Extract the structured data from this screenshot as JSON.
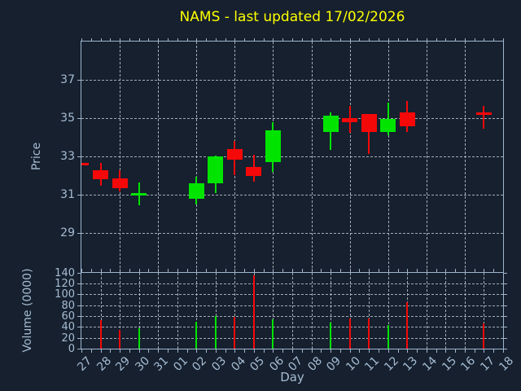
{
  "chart_data": {
    "type": "candlestick",
    "title": "NAMS - last updated 17/02/2026",
    "xlabel": "Day",
    "ylabel_price": "Price",
    "ylabel_volume": "Volume (0000)",
    "x_categories": [
      "27",
      "28",
      "29",
      "30",
      "31",
      "01",
      "02",
      "03",
      "04",
      "05",
      "06",
      "07",
      "08",
      "09",
      "10",
      "11",
      "12",
      "13",
      "14",
      "15",
      "16",
      "17",
      "18"
    ],
    "price_ticks": [
      29,
      31,
      33,
      35,
      37
    ],
    "price_ylim": [
      27,
      39
    ],
    "volume_ticks": [
      0,
      20,
      40,
      60,
      80,
      100,
      120,
      140
    ],
    "volume_ylim": [
      0,
      140
    ],
    "grid": "dashed, horizontal and vertical",
    "legend": "none",
    "candles": [
      {
        "i": 0,
        "day": "27",
        "open": 32.6,
        "high": 32.65,
        "low": 32.55,
        "close": 32.6,
        "dir": "down",
        "volume": null,
        "clipped": true
      },
      {
        "i": 1,
        "day": "28",
        "open": 32.3,
        "high": 32.65,
        "low": 31.5,
        "close": 31.8,
        "dir": "down",
        "volume": 53
      },
      {
        "i": 2,
        "day": "29",
        "open": 31.85,
        "high": 32.3,
        "low": 31.2,
        "close": 31.35,
        "dir": "down",
        "volume": 34
      },
      {
        "i": 3,
        "day": "30",
        "open": 31.1,
        "high": 31.65,
        "low": 30.45,
        "close": 31.1,
        "dir": "up",
        "volume": 37
      },
      {
        "i": 6,
        "day": "02",
        "open": 30.8,
        "high": 31.95,
        "low": 30.5,
        "close": 31.6,
        "dir": "up",
        "volume": 49
      },
      {
        "i": 7,
        "day": "03",
        "open": 31.6,
        "high": 33.05,
        "low": 31.1,
        "close": 33.0,
        "dir": "up",
        "volume": 60
      },
      {
        "i": 8,
        "day": "04",
        "open": 33.4,
        "high": 33.8,
        "low": 32.05,
        "close": 32.85,
        "dir": "down",
        "volume": 58
      },
      {
        "i": 9,
        "day": "05",
        "open": 32.45,
        "high": 33.1,
        "low": 31.7,
        "close": 32.0,
        "dir": "down",
        "volume": 135
      },
      {
        "i": 10,
        "day": "06",
        "open": 32.7,
        "high": 34.8,
        "low": 32.2,
        "close": 34.35,
        "dir": "up",
        "volume": 54
      },
      {
        "i": 13,
        "day": "09",
        "open": 34.3,
        "high": 35.3,
        "low": 33.35,
        "close": 35.15,
        "dir": "up",
        "volume": 48
      },
      {
        "i": 14,
        "day": "10",
        "open": 35.0,
        "high": 35.65,
        "low": 34.25,
        "close": 34.8,
        "dir": "down",
        "volume": 56
      },
      {
        "i": 15,
        "day": "11",
        "open": 35.2,
        "high": 35.2,
        "low": 33.15,
        "close": 34.3,
        "dir": "down",
        "volume": 56
      },
      {
        "i": 16,
        "day": "12",
        "open": 34.3,
        "high": 35.8,
        "low": 34.1,
        "close": 34.95,
        "dir": "up",
        "volume": 44
      },
      {
        "i": 17,
        "day": "13",
        "open": 35.3,
        "high": 35.9,
        "low": 34.3,
        "close": 34.6,
        "dir": "down",
        "volume": 86
      },
      {
        "i": 21,
        "day": "17",
        "open": 35.3,
        "high": 35.65,
        "low": 34.45,
        "close": 35.28,
        "dir": "down",
        "volume": 47
      }
    ],
    "colors": {
      "background": "#16202e",
      "axis": "#9fb5cf",
      "text": "#a6bcd4",
      "grid": "#bcc5cd",
      "title": "#ffff00",
      "up": "#00e400",
      "down": "#f50808"
    }
  }
}
